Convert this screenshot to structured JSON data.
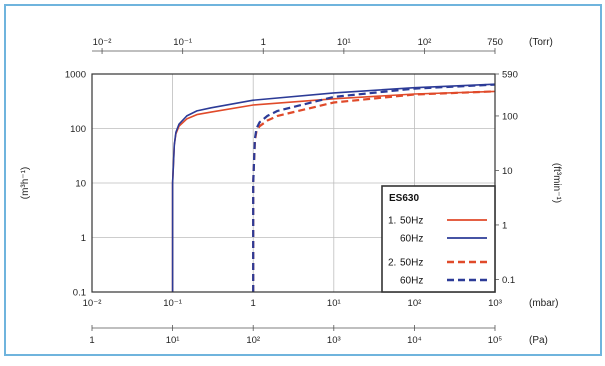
{
  "chart_data": {
    "type": "line",
    "x_top": {
      "unit": "(Torr)",
      "tick_labels": [
        "10⁻²",
        "10⁻¹",
        "1",
        "10¹",
        "10²",
        "750"
      ],
      "tick_values_mbar": [
        0.01333,
        0.1333,
        1.333,
        13.33,
        133.3,
        1000
      ]
    },
    "x_bottom_mbar": {
      "unit": "(mbar)",
      "tick_labels": [
        "10⁻²",
        "10⁻¹",
        "1",
        "10¹",
        "10²",
        "10³"
      ],
      "tick_values": [
        0.01,
        0.1,
        1,
        10,
        100,
        1000
      ],
      "range": [
        0.01,
        1000
      ],
      "scale": "log"
    },
    "x_pa": {
      "unit": "(Pa)",
      "tick_labels": [
        "1",
        "10¹",
        "10²",
        "10³",
        "10⁴",
        "10⁵"
      ],
      "tick_values_mbar": [
        0.01,
        0.1,
        1,
        10,
        100,
        1000
      ]
    },
    "y_left": {
      "unit": "(m³h⁻¹)",
      "tick_labels": [
        "0.1",
        "1",
        "10",
        "100",
        "1000"
      ],
      "tick_values": [
        0.1,
        1,
        10,
        100,
        1000
      ],
      "range": [
        0.1,
        1000
      ],
      "scale": "log"
    },
    "y_right": {
      "unit": "(ft³min⁻¹)",
      "tick_labels": [
        "0.1",
        "1",
        "10",
        "100",
        "590"
      ],
      "tick_values_m3h": [
        0.17,
        1.7,
        17,
        170,
        1000
      ]
    },
    "grid": true,
    "legend": {
      "title": "ES630",
      "placement": "lower-right",
      "groups": [
        {
          "group_label": "1.",
          "entries": [
            "50Hz",
            "60Hz"
          ]
        },
        {
          "group_label": "2.",
          "entries": [
            "50Hz",
            "60Hz"
          ]
        }
      ]
    },
    "series": [
      {
        "name": "1. 50Hz",
        "color": "#e04a2a",
        "style": "solid",
        "x": [
          0.1,
          0.1,
          0.105,
          0.11,
          0.12,
          0.15,
          0.2,
          0.3,
          1,
          10,
          100,
          1000
        ],
        "y": [
          0.1,
          10,
          50,
          80,
          110,
          150,
          180,
          200,
          270,
          350,
          430,
          480
        ]
      },
      {
        "name": "1. 60Hz",
        "color": "#2c3b97",
        "style": "solid",
        "x": [
          0.1,
          0.1,
          0.105,
          0.11,
          0.12,
          0.15,
          0.2,
          0.3,
          1,
          10,
          100,
          1000
        ],
        "y": [
          0.1,
          10,
          50,
          85,
          120,
          170,
          210,
          240,
          330,
          450,
          560,
          650
        ]
      },
      {
        "name": "2. 50Hz",
        "color": "#e04a2a",
        "style": "dashed",
        "x": [
          1,
          1,
          1.05,
          1.1,
          1.2,
          1.5,
          2,
          10,
          100,
          1000
        ],
        "y": [
          0.1,
          10,
          60,
          90,
          110,
          140,
          170,
          300,
          420,
          480
        ]
      },
      {
        "name": "2. 60Hz",
        "color": "#2c3b97",
        "style": "dashed",
        "x": [
          1,
          1,
          1.05,
          1.1,
          1.2,
          1.5,
          2,
          10,
          100,
          1000
        ],
        "y": [
          0.1,
          10,
          65,
          100,
          130,
          170,
          210,
          380,
          540,
          640
        ]
      }
    ]
  }
}
